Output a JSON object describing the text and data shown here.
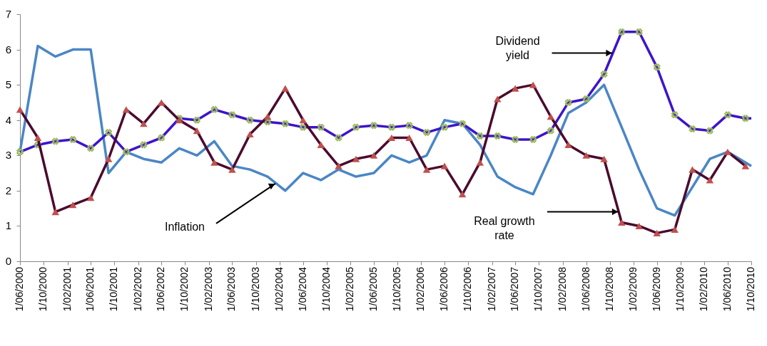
{
  "chart_data": {
    "type": "line",
    "x": [
      "2000-06-01",
      "2000-09-01",
      "2000-12-01",
      "2001-03-01",
      "2001-06-01",
      "2001-09-01",
      "2001-12-01",
      "2002-03-01",
      "2002-06-01",
      "2002-09-01",
      "2002-12-01",
      "2003-03-01",
      "2003-06-01",
      "2003-09-01",
      "2003-12-01",
      "2004-03-01",
      "2004-06-01",
      "2004-09-01",
      "2004-12-01",
      "2005-03-01",
      "2005-06-01",
      "2005-09-01",
      "2005-12-01",
      "2006-03-01",
      "2006-06-01",
      "2006-09-01",
      "2006-12-01",
      "2007-03-01",
      "2007-06-01",
      "2007-09-01",
      "2007-12-01",
      "2008-03-01",
      "2008-06-01",
      "2008-09-01",
      "2008-12-01",
      "2009-03-01",
      "2009-06-01",
      "2009-09-01",
      "2009-12-01",
      "2010-03-01",
      "2010-06-01",
      "2010-09-01",
      "2010-10-01"
    ],
    "series": [
      {
        "color": "#4a86c5",
        "marker": "none",
        "values": [
          3.1,
          6.1,
          5.8,
          6.0,
          6.0,
          2.5,
          3.1,
          2.9,
          2.8,
          3.2,
          3.0,
          3.4,
          2.7,
          2.6,
          2.4,
          2.0,
          2.5,
          2.3,
          2.6,
          2.4,
          2.5,
          3.0,
          2.8,
          3.0,
          4.0,
          3.9,
          3.3,
          2.4,
          2.1,
          1.9,
          3.0,
          4.2,
          4.5,
          5.0,
          3.8,
          2.6,
          1.5,
          1.3,
          2.1,
          2.9,
          3.1,
          2.8,
          2.7
        ]
      },
      {
        "color": "#3d14cc",
        "marker": "cross",
        "colors": [
          "#9bbb59",
          "#9bbb59",
          "#9bbb59",
          "#9bbb59",
          "#9bbb59",
          "#9bbb59",
          "#9bbb59",
          "#9bbb59",
          "#9bbb59",
          "#9bbb59",
          "#9bbb59",
          "#9bbb59",
          "#9bbb59",
          "#9bbb59",
          "#9bbb59",
          "#9bbb59",
          "#9bbb59",
          "#9bbb59",
          "#9bbb59",
          "#9bbb59",
          "#9bbb59",
          "#9bbb59",
          "#9bbb59",
          "#9bbb59",
          "#9bbb59",
          "#9bbb59",
          "#9bbb59",
          "#9bbb59",
          "#9bbb59",
          "#9bbb59",
          "#9bbb59",
          "#9bbb59",
          "#9bbb59",
          "#9bbb59",
          "#9bbb59",
          "#9bbb59",
          "#9bbb59",
          "#9bbb59",
          "#9bbb59",
          "#9bbb59",
          "#9bbb59",
          "#9bbb59",
          null
        ],
        "values": [
          3.1,
          3.3,
          3.4,
          3.45,
          3.2,
          3.65,
          3.1,
          3.3,
          3.5,
          4.05,
          4.0,
          4.3,
          4.15,
          4.0,
          3.95,
          3.9,
          3.8,
          3.8,
          3.5,
          3.8,
          3.85,
          3.8,
          3.85,
          3.65,
          3.8,
          3.9,
          3.55,
          3.55,
          3.45,
          3.45,
          3.7,
          4.5,
          4.6,
          5.3,
          6.5,
          6.5,
          5.5,
          4.15,
          3.75,
          3.7,
          4.15,
          4.05,
          4.05
        ]
      },
      {
        "color": "#4b0a2e",
        "marker": "triangle",
        "colors": [
          "#c0504d",
          "#c0504d",
          "#c0504d",
          "#c0504d",
          "#c0504d",
          "#c0504d",
          "#c0504d",
          "#c0504d",
          "#c0504d",
          "#c0504d",
          "#c0504d",
          "#c0504d",
          "#c0504d",
          "#c0504d",
          "#c0504d",
          "#c0504d",
          "#c0504d",
          "#c0504d",
          "#c0504d",
          "#c0504d",
          "#c0504d",
          "#c0504d",
          "#c0504d",
          "#c0504d",
          "#c0504d",
          "#c0504d",
          "#c0504d",
          "#c0504d",
          "#c0504d",
          "#c0504d",
          "#c0504d",
          "#c0504d",
          "#c0504d",
          "#c0504d",
          "#c0504d",
          "#c0504d",
          "#c0504d",
          "#c0504d",
          "#c0504d",
          "#c0504d",
          "#c0504d",
          "#c0504d",
          null
        ],
        "values": [
          4.3,
          3.5,
          1.4,
          1.6,
          1.8,
          2.9,
          4.3,
          3.9,
          4.5,
          4.0,
          3.7,
          2.8,
          2.6,
          3.6,
          4.1,
          4.9,
          4.0,
          3.3,
          2.7,
          2.9,
          3.0,
          3.5,
          3.5,
          2.6,
          2.7,
          1.9,
          2.8,
          4.6,
          4.9,
          5.0,
          4.1,
          3.3,
          3.0,
          2.9,
          1.1,
          1.0,
          0.8,
          0.9,
          2.6,
          2.3,
          3.1,
          2.7,
          null
        ]
      }
    ],
    "annotations": [
      {
        "text": "Dividend\nyield",
        "x": "2008-10-15",
        "y": 5.9
      },
      {
        "text": "Inflation",
        "x": "2004-01-10",
        "y": 2.2
      },
      {
        "text": "Real growth\nrate",
        "x": "2008-11-15",
        "y": 1.4
      }
    ],
    "ylim": [
      0,
      7
    ],
    "yticks": [
      0,
      1,
      2,
      3,
      4,
      5,
      6,
      7
    ],
    "xlim": [
      "2000-06-01",
      "2010-10-01"
    ],
    "xticks": [
      {
        "value": "2000-06-01",
        "label": "1/06/2000"
      },
      {
        "value": "2000-10-01",
        "label": "1/10/2000"
      },
      {
        "value": "2001-02-01",
        "label": "1/02/2001"
      },
      {
        "value": "2001-06-01",
        "label": "1/06/2001"
      },
      {
        "value": "2001-10-01",
        "label": "1/10/2001"
      },
      {
        "value": "2002-02-01",
        "label": "1/02/2002"
      },
      {
        "value": "2002-06-01",
        "label": "1/06/2002"
      },
      {
        "value": "2002-10-01",
        "label": "1/10/2002"
      },
      {
        "value": "2003-02-01",
        "label": "1/02/2003"
      },
      {
        "value": "2003-06-01",
        "label": "1/06/2003"
      },
      {
        "value": "2003-10-01",
        "label": "1/10/2003"
      },
      {
        "value": "2004-02-01",
        "label": "1/02/2004"
      },
      {
        "value": "2004-06-01",
        "label": "1/06/2004"
      },
      {
        "value": "2004-10-01",
        "label": "1/10/2004"
      },
      {
        "value": "2005-02-01",
        "label": "1/02/2005"
      },
      {
        "value": "2005-06-01",
        "label": "1/06/2005"
      },
      {
        "value": "2005-10-01",
        "label": "1/10/2005"
      },
      {
        "value": "2006-02-01",
        "label": "1/02/2006"
      },
      {
        "value": "2006-06-01",
        "label": "1/06/2006"
      },
      {
        "value": "2006-10-01",
        "label": "1/10/2006"
      },
      {
        "value": "2007-02-01",
        "label": "1/02/2007"
      },
      {
        "value": "2007-06-01",
        "label": "1/06/2007"
      },
      {
        "value": "2007-10-01",
        "label": "1/10/2007"
      },
      {
        "value": "2008-02-01",
        "label": "1/02/2008"
      },
      {
        "value": "2008-06-01",
        "label": "1/06/2008"
      },
      {
        "value": "2008-10-01",
        "label": "1/10/2008"
      },
      {
        "value": "2009-02-01",
        "label": "1/02/2009"
      },
      {
        "value": "2009-06-01",
        "label": "1/06/2009"
      },
      {
        "value": "2009-10-01",
        "label": "1/10/2009"
      },
      {
        "value": "2010-02-01",
        "label": "1/02/2010"
      },
      {
        "value": "2010-06-01",
        "label": "1/06/2010"
      },
      {
        "value": "2010-10-01",
        "label": "1/10/2010"
      }
    ],
    "grid": false,
    "line_style": "solid"
  }
}
